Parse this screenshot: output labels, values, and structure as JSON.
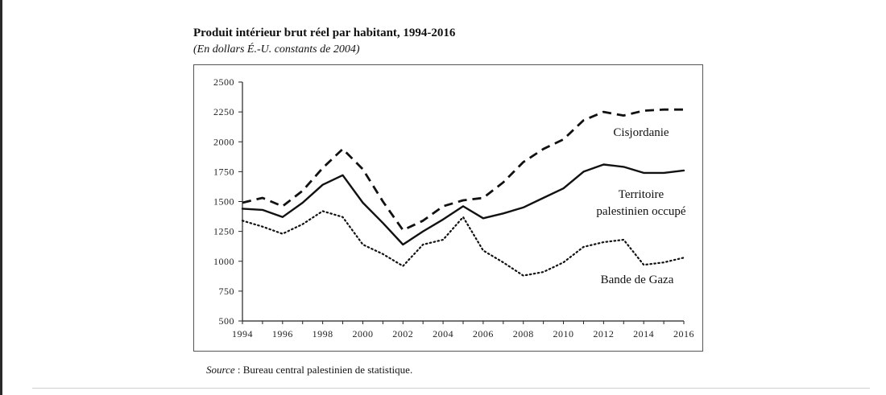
{
  "chart_data": {
    "type": "line",
    "title": "Produit intérieur brut réel par habitant, 1994-2016",
    "subtitle": "(En dollars É.-U. constants de 2004)",
    "xlabel": "",
    "ylabel": "",
    "ylim": [
      500,
      2500
    ],
    "yticks": [
      500,
      750,
      1000,
      1250,
      1500,
      1750,
      2000,
      2250,
      2500
    ],
    "xlim": [
      1994,
      2016
    ],
    "xticks": [
      1994,
      1996,
      1998,
      2000,
      2002,
      2004,
      2006,
      2008,
      2010,
      2012,
      2014,
      2016
    ],
    "grid": false,
    "x": [
      1994,
      1995,
      1996,
      1997,
      1998,
      1999,
      2000,
      2001,
      2002,
      2003,
      2004,
      2005,
      2006,
      2007,
      2008,
      2009,
      2010,
      2011,
      2012,
      2013,
      2014,
      2015,
      2016
    ],
    "series": [
      {
        "name": "Cisjordanie",
        "line_style": "dashed",
        "label_lines": [
          "Cisjordanie"
        ],
        "values": [
          1490,
          1530,
          1460,
          1590,
          1780,
          1940,
          1770,
          1500,
          1260,
          1340,
          1460,
          1510,
          1530,
          1660,
          1830,
          1940,
          2020,
          2180,
          2250,
          2220,
          2260,
          2270,
          2270
        ]
      },
      {
        "name": "Territoire palestinien occupé",
        "line_style": "solid",
        "label_lines": [
          "Territoire",
          "palestinien occupé"
        ],
        "values": [
          1440,
          1430,
          1370,
          1490,
          1640,
          1720,
          1490,
          1320,
          1140,
          1250,
          1350,
          1460,
          1360,
          1400,
          1450,
          1530,
          1610,
          1750,
          1810,
          1790,
          1740,
          1740,
          1760
        ]
      },
      {
        "name": "Bande de Gaza",
        "line_style": "dotted",
        "label_lines": [
          "Bande de Gaza"
        ],
        "values": [
          1340,
          1290,
          1230,
          1310,
          1420,
          1370,
          1140,
          1060,
          960,
          1140,
          1180,
          1370,
          1090,
          990,
          880,
          910,
          990,
          1120,
          1160,
          1180,
          970,
          990,
          1030
        ]
      }
    ]
  },
  "source": {
    "prefix": "Source",
    "text": " : Bureau central palestinien de statistique."
  }
}
